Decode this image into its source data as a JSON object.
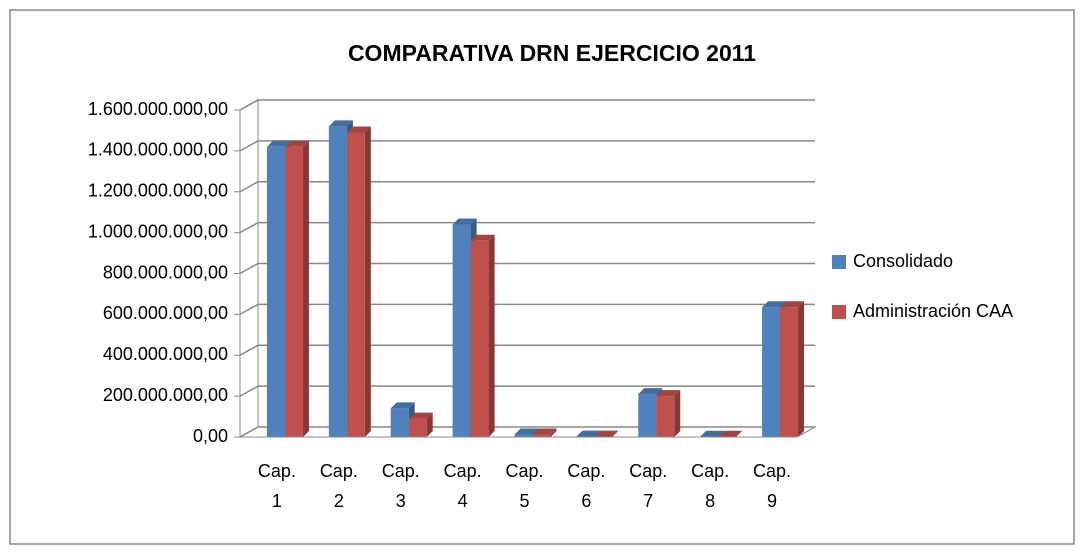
{
  "chart_data": {
    "type": "bar3d",
    "title": "COMPARATIVA DRN EJERCICIO 2011",
    "categories": [
      "Cap. 1",
      "Cap. 2",
      "Cap. 3",
      "Cap. 4",
      "Cap. 5",
      "Cap. 6",
      "Cap. 7",
      "Cap. 8",
      "Cap. 9"
    ],
    "series": [
      {
        "name": "Consolidado",
        "color": "#4f81bd",
        "values": [
          1420000000,
          1520000000,
          140000000,
          1040000000,
          12000000,
          2000000,
          210000000,
          1000000,
          635000000
        ]
      },
      {
        "name": "Administración CAA",
        "color": "#c0504d",
        "values": [
          1420000000,
          1490000000,
          90000000,
          960000000,
          12000000,
          2000000,
          200000000,
          1000000,
          635000000
        ]
      }
    ],
    "ylim": [
      0,
      1600000000
    ],
    "yticks": [
      {
        "value": 0,
        "label": "0,00"
      },
      {
        "value": 200000000,
        "label": "200.000.000,00"
      },
      {
        "value": 400000000,
        "label": "400.000.000,00"
      },
      {
        "value": 600000000,
        "label": "600.000.000,00"
      },
      {
        "value": 800000000,
        "label": "800.000.000,00"
      },
      {
        "value": 1000000000,
        "label": "1.000.000.000,00"
      },
      {
        "value": 1200000000,
        "label": "1.200.000.000,00"
      },
      {
        "value": 1400000000,
        "label": "1.400.000.000,00"
      },
      {
        "value": 1600000000,
        "label": "1.600.000.000,00"
      }
    ],
    "grid": true,
    "legend": "right"
  }
}
